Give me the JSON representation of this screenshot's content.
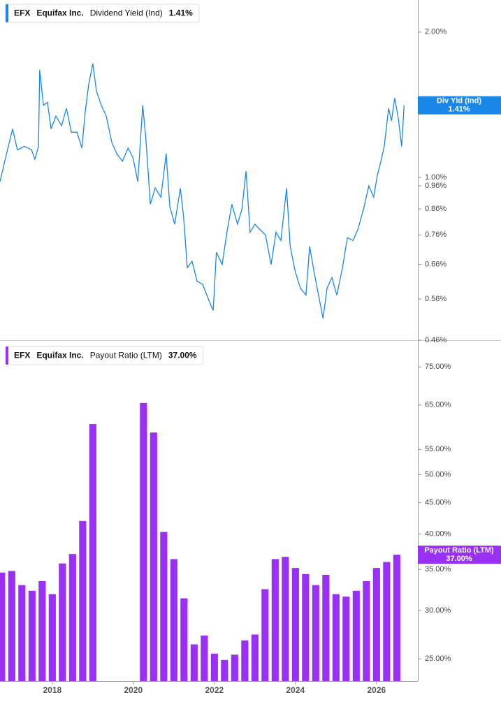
{
  "chart_data": [
    {
      "type": "line",
      "ticker": "EFX",
      "company": "Equifax Inc.",
      "title": "Dividend Yield (Ind)",
      "log_scale": true,
      "x": [
        2016.71,
        2016.85,
        2017.02,
        2017.14,
        2017.31,
        2017.49,
        2017.57,
        2017.66,
        2017.69,
        2017.78,
        2017.88,
        2017.97,
        2018.09,
        2018.23,
        2018.35,
        2018.47,
        2018.61,
        2018.73,
        2018.81,
        2018.9,
        2019.0,
        2019.09,
        2019.21,
        2019.33,
        2019.47,
        2019.59,
        2019.73,
        2019.87,
        2019.99,
        2020.11,
        2020.23,
        2020.31,
        2020.42,
        2020.54,
        2020.68,
        2020.81,
        2020.9,
        2021.02,
        2021.16,
        2021.24,
        2021.33,
        2021.45,
        2021.57,
        2021.71,
        2021.85,
        2021.97,
        2022.05,
        2022.19,
        2022.31,
        2022.43,
        2022.57,
        2022.68,
        2022.78,
        2022.88,
        2023.0,
        2023.12,
        2023.26,
        2023.4,
        2023.52,
        2023.64,
        2023.78,
        2023.87,
        2023.99,
        2024.12,
        2024.26,
        2024.35,
        2024.47,
        2024.57,
        2024.68,
        2024.78,
        2024.9,
        2025.02,
        2025.16,
        2025.28,
        2025.42,
        2025.54,
        2025.68,
        2025.81,
        2025.93,
        2026.02,
        2026.11,
        2026.19,
        2026.3,
        2026.37,
        2026.45,
        2026.54,
        2026.62,
        2026.68
      ],
      "series": [
        {
          "name": "Div Yld (Ind)",
          "color": "#1a87e6",
          "values": [
            0.98,
            1.1,
            1.26,
            1.14,
            1.16,
            1.14,
            1.09,
            1.16,
            1.67,
            1.41,
            1.43,
            1.26,
            1.34,
            1.28,
            1.39,
            1.24,
            1.24,
            1.15,
            1.36,
            1.56,
            1.72,
            1.51,
            1.41,
            1.34,
            1.18,
            1.12,
            1.08,
            1.15,
            1.1,
            0.98,
            1.41,
            1.2,
            0.88,
            0.95,
            0.91,
            1.12,
            0.87,
            0.8,
            0.95,
            0.83,
            0.65,
            0.67,
            0.61,
            0.6,
            0.56,
            0.53,
            0.7,
            0.66,
            0.77,
            0.88,
            0.8,
            0.86,
            1.03,
            0.77,
            0.8,
            0.78,
            0.76,
            0.66,
            0.77,
            0.74,
            0.95,
            0.72,
            0.64,
            0.59,
            0.57,
            0.72,
            0.63,
            0.57,
            0.51,
            0.59,
            0.62,
            0.57,
            0.65,
            0.75,
            0.74,
            0.78,
            0.86,
            0.96,
            0.91,
            1.01,
            1.08,
            1.16,
            1.39,
            1.31,
            1.46,
            1.32,
            1.16,
            1.41
          ],
          "current": {
            "value": 1.41,
            "label": "1.41%"
          }
        }
      ],
      "xlim": [
        2016.71,
        2027.02
      ],
      "ylim": [
        0.46,
        2.33
      ],
      "yticks": [
        {
          "value": 2,
          "label": "2.00%"
        },
        {
          "value": 1,
          "label": "1.00%"
        },
        {
          "value": 0.96,
          "label": "0.96%"
        },
        {
          "value": 0.86,
          "label": "0.86%"
        },
        {
          "value": 0.76,
          "label": "0.76%"
        },
        {
          "value": 0.66,
          "label": "0.66%"
        },
        {
          "value": 0.56,
          "label": "0.56%"
        },
        {
          "value": 0.46,
          "label": "0.46%"
        }
      ]
    },
    {
      "type": "bar",
      "ticker": "EFX",
      "company": "Equifax Inc.",
      "title": "Payout Ratio (LTM)",
      "log_scale": true,
      "x": [
        2016.75,
        2017.0,
        2017.25,
        2017.5,
        2017.75,
        2018.0,
        2018.25,
        2018.5,
        2018.75,
        2019.0,
        2020.25,
        2020.5,
        2020.75,
        2021.0,
        2021.25,
        2021.5,
        2021.75,
        2022.0,
        2022.25,
        2022.5,
        2022.75,
        2023.0,
        2023.25,
        2023.5,
        2023.75,
        2024.0,
        2024.25,
        2024.5,
        2024.75,
        2025.0,
        2025.25,
        2025.5,
        2025.75,
        2026.0,
        2026.25,
        2026.5
      ],
      "series": [
        {
          "name": "Payout Ratio (LTM)",
          "color": "#9b30f5",
          "values": [
            34.6,
            34.8,
            33.0,
            32.3,
            33.5,
            31.9,
            35.8,
            37.1,
            42.0,
            60.5,
            65.5,
            58.6,
            40.3,
            36.4,
            31.4,
            26.4,
            27.3,
            25.5,
            24.9,
            25.4,
            26.8,
            27.4,
            32.5,
            36.4,
            36.7,
            35.2,
            34.4,
            33.0,
            34.3,
            31.9,
            31.6,
            32.3,
            33.5,
            35.2,
            36.0,
            37.0
          ],
          "current": {
            "value": 37,
            "label": "37.00%"
          }
        }
      ],
      "xlim": [
        2016.71,
        2027.02
      ],
      "ylim": [
        23,
        82.3
      ],
      "yticks": [
        {
          "value": 75,
          "label": "75.00%"
        },
        {
          "value": 65,
          "label": "65.00%"
        },
        {
          "value": 55,
          "label": "55.00%"
        },
        {
          "value": 50,
          "label": "50.00%"
        },
        {
          "value": 45,
          "label": "45.00%"
        },
        {
          "value": 40,
          "label": "40.00%"
        },
        {
          "value": 35,
          "label": "35.00%"
        },
        {
          "value": 30,
          "label": "30.00%"
        },
        {
          "value": 25,
          "label": "25.00%"
        }
      ],
      "xticks": [
        2018,
        2020,
        2022,
        2024,
        2026
      ]
    }
  ]
}
